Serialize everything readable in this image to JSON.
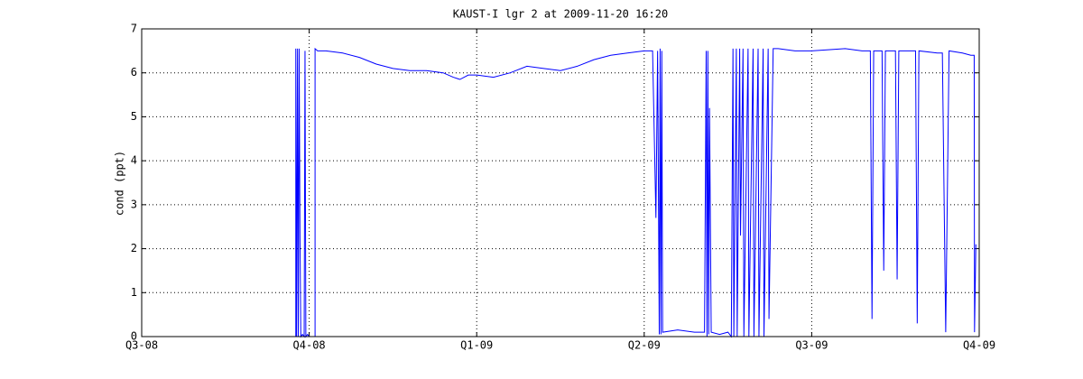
{
  "chart_data": {
    "type": "line",
    "title": "KAUST-I lgr 2 at 2009-11-20 16:20",
    "ylabel": "cond (ppt)",
    "xlim": [
      0,
      5
    ],
    "xticks": [
      {
        "value": 0,
        "label": "Q3-08"
      },
      {
        "value": 1,
        "label": "Q4-08"
      },
      {
        "value": 2,
        "label": "Q1-09"
      },
      {
        "value": 3,
        "label": "Q2-09"
      },
      {
        "value": 4,
        "label": "Q3-09"
      },
      {
        "value": 5,
        "label": "Q4-09"
      }
    ],
    "ylim": [
      0,
      7
    ],
    "yticks": [
      0,
      1,
      2,
      3,
      4,
      5,
      6,
      7
    ],
    "grid": true,
    "series": [
      {
        "color": "#0000ff",
        "x": [
          0.92,
          0.92,
          0.925,
          0.93,
          0.935,
          0.94,
          0.945,
          0.95,
          0.96,
          0.97,
          0.975,
          0.98,
          0.99,
          1.0,
          1.035,
          1.035,
          1.05,
          1.1,
          1.2,
          1.3,
          1.4,
          1.5,
          1.6,
          1.7,
          1.8,
          1.86,
          1.9,
          1.95,
          2.0,
          2.1,
          2.2,
          2.3,
          2.4,
          2.5,
          2.6,
          2.7,
          2.8,
          2.9,
          3.0,
          3.05,
          3.07,
          3.08,
          3.09,
          3.095,
          3.1,
          3.105,
          3.11,
          3.2,
          3.3,
          3.36,
          3.37,
          3.375,
          3.38,
          3.385,
          3.39,
          3.4,
          3.45,
          3.5,
          3.52,
          3.53,
          3.535,
          3.55,
          3.555,
          3.57,
          3.575,
          3.59,
          3.595,
          3.62,
          3.625,
          3.65,
          3.655,
          3.68,
          3.685,
          3.71,
          3.715,
          3.74,
          3.745,
          3.77,
          3.8,
          3.9,
          4.0,
          4.2,
          4.3,
          4.35,
          4.36,
          4.37,
          4.42,
          4.43,
          4.44,
          4.5,
          4.51,
          4.52,
          4.6,
          4.62,
          4.63,
          4.64,
          4.75,
          4.78,
          4.8,
          4.82,
          4.9,
          4.95,
          4.97,
          4.972,
          4.98
        ],
        "values": [
          0,
          6.55,
          0,
          6.55,
          0,
          6.55,
          2.3,
          0,
          0.05,
          0,
          6.5,
          0,
          0.05,
          0,
          0,
          6.55,
          6.5,
          6.5,
          6.45,
          6.35,
          6.2,
          6.1,
          6.05,
          6.05,
          6.0,
          5.9,
          5.85,
          5.95,
          5.95,
          5.9,
          6.0,
          6.15,
          6.1,
          6.05,
          6.15,
          6.3,
          6.4,
          6.45,
          6.5,
          6.5,
          2.7,
          6.5,
          0.05,
          6.55,
          0.05,
          6.5,
          0.1,
          0.15,
          0.1,
          0.1,
          6.5,
          0,
          6.5,
          0.05,
          5.2,
          0.1,
          0.05,
          0.1,
          0,
          6.55,
          0,
          6.55,
          0,
          6.55,
          2.3,
          6.55,
          0,
          6.55,
          0,
          6.55,
          0,
          6.55,
          0,
          6.55,
          0,
          6.55,
          0.4,
          6.55,
          6.55,
          6.5,
          6.5,
          6.55,
          6.5,
          6.5,
          0.4,
          6.5,
          6.5,
          1.5,
          6.5,
          6.5,
          1.3,
          6.5,
          6.5,
          6.5,
          0.3,
          6.5,
          6.45,
          6.45,
          0.1,
          6.5,
          6.45,
          6.4,
          6.4,
          0.1,
          2.1
        ]
      }
    ]
  }
}
